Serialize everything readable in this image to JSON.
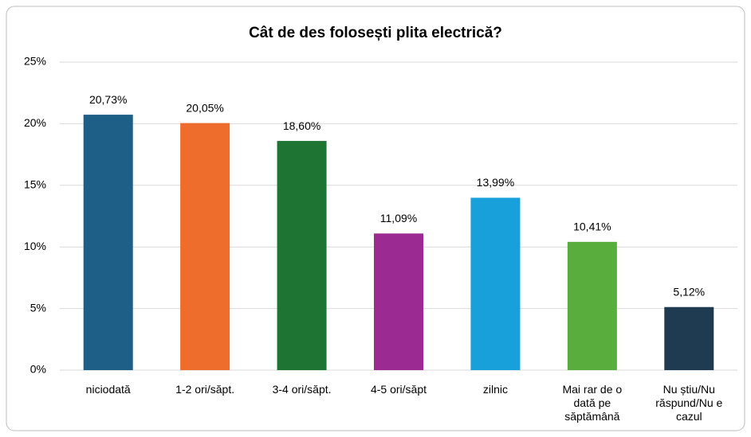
{
  "chart_data": {
    "type": "bar",
    "title": "Cât de des folosești plita electrică?",
    "categories": [
      "niciodată",
      "1-2 ori/săpt.",
      "3-4 ori/săpt.",
      "4-5 ori/săpt",
      "zilnic",
      "Mai rar de o dată pe săptămână",
      "Nu știu/Nu răspund/Nu e cazul"
    ],
    "values": [
      20.73,
      20.05,
      18.6,
      11.09,
      13.99,
      10.41,
      5.12
    ],
    "value_labels": [
      "20,73%",
      "20,05%",
      "18,60%",
      "11,09%",
      "13,99%",
      "10,41%",
      "5,12%"
    ],
    "colors": [
      "#1d5f86",
      "#ee6c2c",
      "#1e7533",
      "#9b2b93",
      "#17a0da",
      "#58ad3c",
      "#1f3b52"
    ],
    "ylim": [
      0,
      25
    ],
    "yticks": [
      {
        "value": 0,
        "label": "0%"
      },
      {
        "value": 5,
        "label": "5%"
      },
      {
        "value": 10,
        "label": "10%"
      },
      {
        "value": 15,
        "label": "15%"
      },
      {
        "value": 20,
        "label": "20%"
      },
      {
        "value": 25,
        "label": "25%"
      }
    ],
    "grid": true
  }
}
